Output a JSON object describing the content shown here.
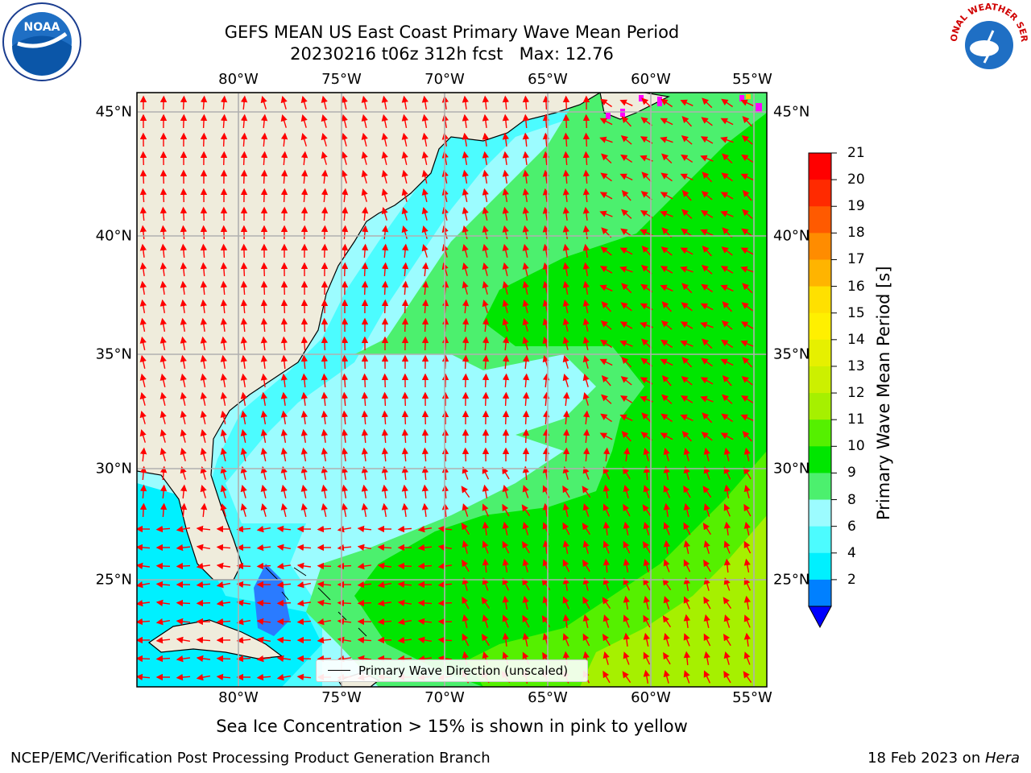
{
  "title": {
    "line1": "GEFS MEAN US East Coast Primary Wave Mean Period",
    "line2": "20230216 t06z 312h fcst   Max: 12.76"
  },
  "map": {
    "lon_labels": [
      "80°W",
      "75°W",
      "70°W",
      "65°W",
      "60°W",
      "55°W"
    ],
    "lat_labels": [
      "45°N",
      "40°N",
      "35°N",
      "30°N",
      "25°N"
    ],
    "land_color": "#efecdc",
    "grid_color": "#b0b0b0",
    "arrow_color": "#ff0000"
  },
  "colorbar": {
    "label": "Primary Wave Mean Period [s]",
    "ticks": [
      "21",
      "20",
      "19",
      "18",
      "17",
      "16",
      "15",
      "14",
      "13",
      "12",
      "11",
      "10",
      "9",
      "8",
      "6",
      "4",
      "2"
    ],
    "colors": [
      "#ff0000",
      "#ff2a00",
      "#ff5a00",
      "#ff8c00",
      "#ffb400",
      "#ffe000",
      "#fff000",
      "#e6f000",
      "#ccf000",
      "#a6f000",
      "#55f000",
      "#00e600",
      "#4cf06e",
      "#9cfcff",
      "#4cfcff",
      "#00f0ff",
      "#0080ff"
    ],
    "underflow_color": "#0000ff"
  },
  "legend": {
    "label": "Primary Wave Direction (unscaled)"
  },
  "note": "Sea Ice Concentration > 15% is shown in pink to yellow",
  "footer": {
    "left": "NCEP/EMC/Verification Post Processing Product Generation Branch",
    "right_date": "18 Feb 2023 on ",
    "right_host": "Hera"
  },
  "logos": {
    "noaa": "NOAA",
    "nws": "NATIONAL WEATHER SERVICE"
  }
}
